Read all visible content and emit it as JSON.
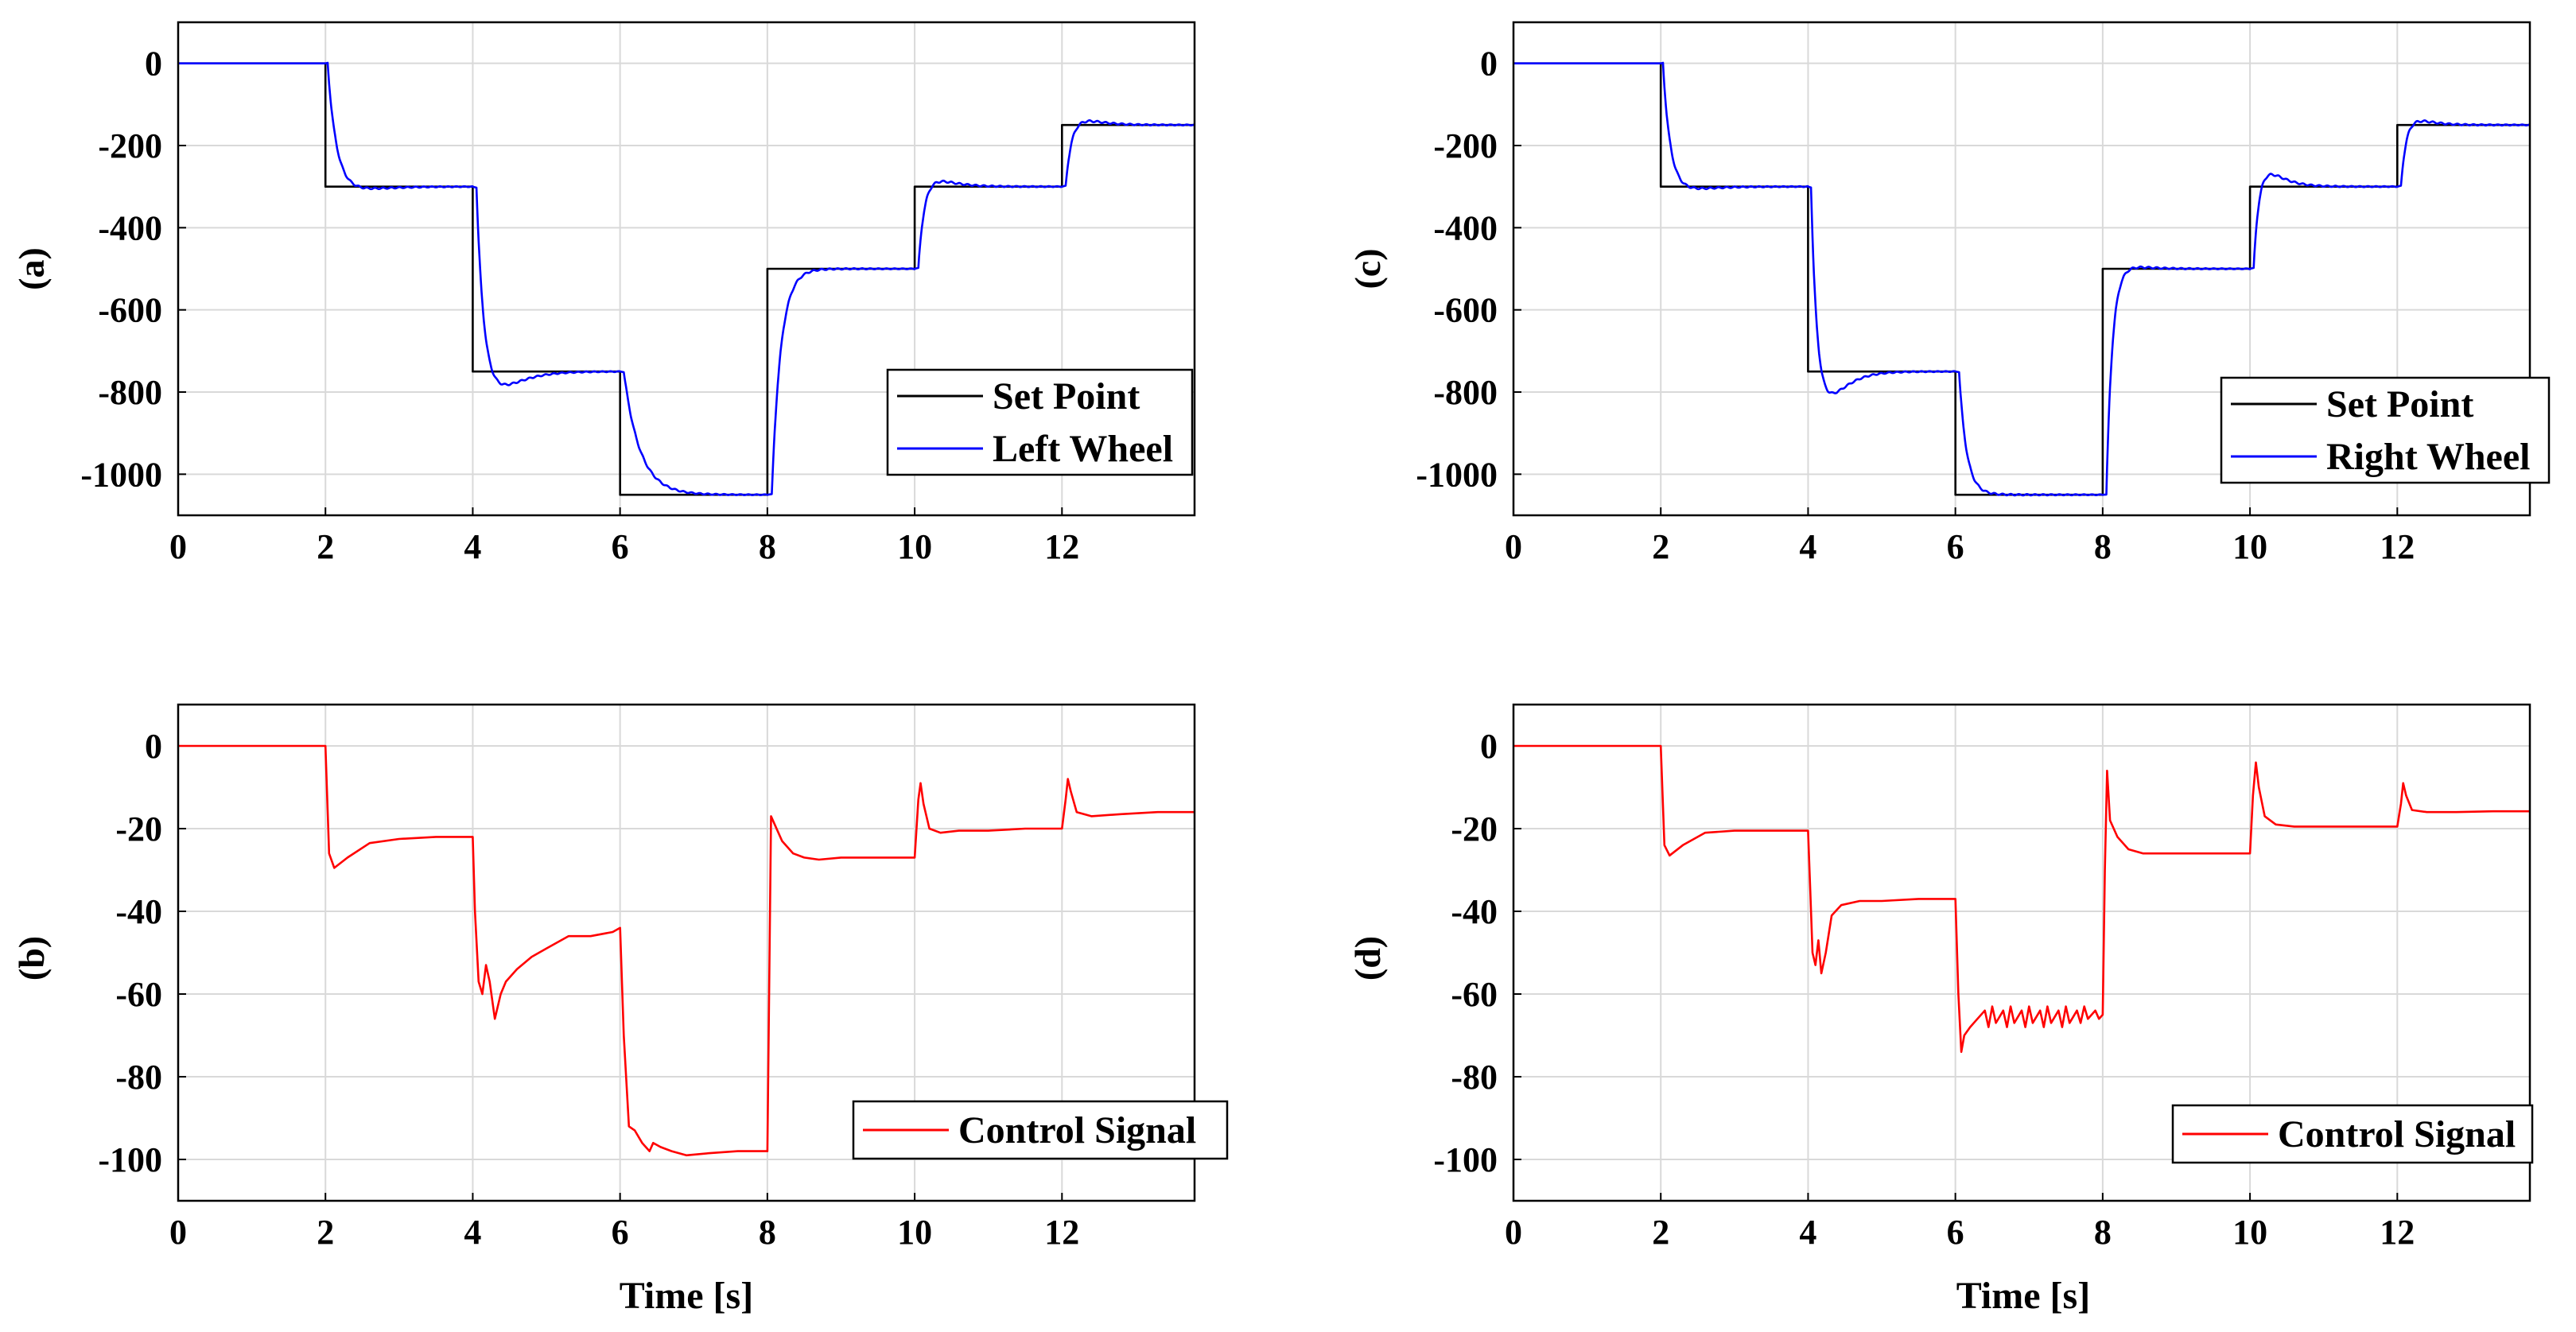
{
  "chart_data": [
    {
      "id": "a",
      "type": "line",
      "panel_label": "(a)",
      "xlabel": "",
      "xlim": [
        0,
        13.8
      ],
      "ylim": [
        -1100,
        100
      ],
      "xticks": [
        0,
        2,
        4,
        6,
        8,
        10,
        12
      ],
      "yticks": [
        0,
        -200,
        -400,
        -600,
        -800,
        -1000
      ],
      "grid": true,
      "legend_position": "lower-right",
      "series": [
        {
          "name": "Set Point",
          "color": "#000000",
          "kind": "step",
          "x": [
            0,
            2,
            4,
            6,
            8,
            10,
            12
          ],
          "values": [
            0,
            -300,
            -750,
            -1050,
            -500,
            -300,
            -150
          ],
          "x_end": 13.8
        },
        {
          "name": "Left Wheel",
          "color": "#0000ff",
          "kind": "response",
          "x": [
            0,
            2,
            4,
            6,
            8,
            10,
            12
          ],
          "values": [
            0,
            -300,
            -750,
            -1050,
            -500,
            -300,
            -150
          ],
          "x_end": 13.8,
          "tau": [
            0.12,
            0.1,
            0.22,
            0.12,
            0.08,
            0.08
          ],
          "overshoot": [
            10,
            50,
            0,
            0,
            20,
            15
          ],
          "lag": [
            0.03,
            0.05,
            0.05,
            0.06,
            0.05,
            0.05
          ]
        }
      ]
    },
    {
      "id": "c",
      "type": "line",
      "panel_label": "(c)",
      "xlabel": "",
      "xlim": [
        0,
        13.8
      ],
      "ylim": [
        -1100,
        100
      ],
      "xticks": [
        0,
        2,
        4,
        6,
        8,
        10,
        12
      ],
      "yticks": [
        0,
        -200,
        -400,
        -600,
        -800,
        -1000
      ],
      "grid": true,
      "legend_position": "lower-right",
      "series": [
        {
          "name": "Set Point",
          "color": "#000000",
          "kind": "step",
          "x": [
            0,
            2,
            4,
            6,
            8,
            10,
            12
          ],
          "values": [
            0,
            -300,
            -750,
            -1050,
            -500,
            -300,
            -150
          ],
          "x_end": 13.8
        },
        {
          "name": "Right Wheel",
          "color": "#0000ff",
          "kind": "response",
          "x": [
            0,
            2,
            4,
            6,
            8,
            10,
            12
          ],
          "values": [
            0,
            -300,
            -750,
            -1050,
            -500,
            -300,
            -150
          ],
          "x_end": 13.8,
          "tau": [
            0.1,
            0.08,
            0.1,
            0.08,
            0.07,
            0.07
          ],
          "overshoot": [
            10,
            75,
            0,
            10,
            40,
            15
          ],
          "lag": [
            0.03,
            0.04,
            0.05,
            0.05,
            0.05,
            0.05
          ]
        }
      ]
    },
    {
      "id": "b",
      "type": "line",
      "panel_label": "(b)",
      "xlabel": "Time [s]",
      "xlim": [
        0,
        13.8
      ],
      "ylim": [
        -110,
        10
      ],
      "xticks": [
        0,
        2,
        4,
        6,
        8,
        10,
        12
      ],
      "yticks": [
        0,
        -20,
        -40,
        -60,
        -80,
        -100
      ],
      "grid": true,
      "legend_position": "lower-right",
      "series": [
        {
          "name": "Control Signal",
          "color": "#ff0000",
          "kind": "path",
          "x": [
            0,
            2.0,
            2.05,
            2.12,
            2.3,
            2.6,
            3.0,
            3.5,
            4.0,
            4.03,
            4.08,
            4.13,
            4.18,
            4.23,
            4.3,
            4.38,
            4.45,
            4.6,
            4.8,
            5.0,
            5.3,
            5.6,
            5.9,
            6.0,
            6.05,
            6.12,
            6.2,
            6.3,
            6.4,
            6.45,
            6.55,
            6.7,
            6.9,
            7.2,
            7.6,
            8.0,
            8.05,
            8.1,
            8.2,
            8.35,
            8.5,
            8.7,
            9.0,
            9.5,
            10.0,
            10.05,
            10.08,
            10.12,
            10.2,
            10.35,
            10.6,
            11.0,
            11.5,
            12.0,
            12.05,
            12.08,
            12.12,
            12.2,
            12.4,
            12.8,
            13.3,
            13.8
          ],
          "values": [
            0,
            0,
            -26,
            -29.5,
            -27,
            -23.5,
            -22.5,
            -22,
            -22,
            -40,
            -57,
            -60,
            -53,
            -57,
            -66,
            -60,
            -57,
            -54,
            -51,
            -49,
            -46,
            -46,
            -45,
            -44,
            -70,
            -92,
            -93,
            -96,
            -98,
            -96,
            -97,
            -98,
            -99,
            -98.5,
            -98,
            -98,
            -17,
            -19,
            -23,
            -26,
            -27,
            -27.5,
            -27,
            -27,
            -27,
            -13,
            -9,
            -14,
            -20,
            -21,
            -20.5,
            -20.5,
            -20,
            -20,
            -13,
            -8,
            -11,
            -16,
            -17,
            -16.5,
            -16,
            -16
          ]
        }
      ]
    },
    {
      "id": "d",
      "type": "line",
      "panel_label": "(d)",
      "xlabel": "Time [s]",
      "xlim": [
        0,
        13.8
      ],
      "ylim": [
        -110,
        10
      ],
      "xticks": [
        0,
        2,
        4,
        6,
        8,
        10,
        12
      ],
      "yticks": [
        0,
        -20,
        -40,
        -60,
        -80,
        -100
      ],
      "grid": true,
      "legend_position": "lower-right",
      "series": [
        {
          "name": "Control Signal",
          "color": "#ff0000",
          "kind": "path",
          "x": [
            0,
            2.0,
            2.05,
            2.12,
            2.3,
            2.6,
            3.0,
            3.5,
            4.0,
            4.03,
            4.06,
            4.1,
            4.14,
            4.18,
            4.24,
            4.32,
            4.45,
            4.7,
            5.0,
            5.5,
            6.0,
            6.04,
            6.08,
            6.12,
            6.2,
            6.3,
            6.4,
            6.45,
            6.5,
            6.55,
            6.65,
            6.7,
            6.75,
            6.8,
            6.9,
            6.95,
            7.0,
            7.05,
            7.15,
            7.2,
            7.25,
            7.3,
            7.4,
            7.45,
            7.5,
            7.55,
            7.65,
            7.7,
            7.75,
            7.8,
            7.9,
            7.95,
            8.0,
            8.03,
            8.06,
            8.1,
            8.2,
            8.35,
            8.55,
            9.0,
            9.5,
            10.0,
            10.04,
            10.08,
            10.12,
            10.2,
            10.35,
            10.6,
            11.0,
            11.5,
            12.0,
            12.05,
            12.08,
            12.12,
            12.2,
            12.4,
            12.8,
            13.3,
            13.8
          ],
          "values": [
            0,
            0,
            -24,
            -26.5,
            -24,
            -21,
            -20.5,
            -20.5,
            -20.5,
            -35,
            -50,
            -53,
            -47,
            -55,
            -50,
            -41,
            -38.5,
            -37.5,
            -37.5,
            -37,
            -37,
            -60,
            -74,
            -70,
            -68,
            -66,
            -64,
            -68,
            -63,
            -67,
            -64,
            -68,
            -63,
            -67,
            -64,
            -68,
            -63,
            -67,
            -64,
            -68,
            -63,
            -67,
            -64,
            -68,
            -63,
            -67,
            -64,
            -67,
            -63,
            -66,
            -64,
            -66,
            -65,
            -30,
            -6,
            -18,
            -22,
            -25,
            -26,
            -26,
            -26,
            -26,
            -12,
            -4,
            -10,
            -17,
            -19,
            -19.5,
            -19.5,
            -19.5,
            -19.5,
            -14,
            -9,
            -12,
            -15.5,
            -16,
            -16,
            -15.8,
            -15.8
          ]
        }
      ]
    }
  ]
}
